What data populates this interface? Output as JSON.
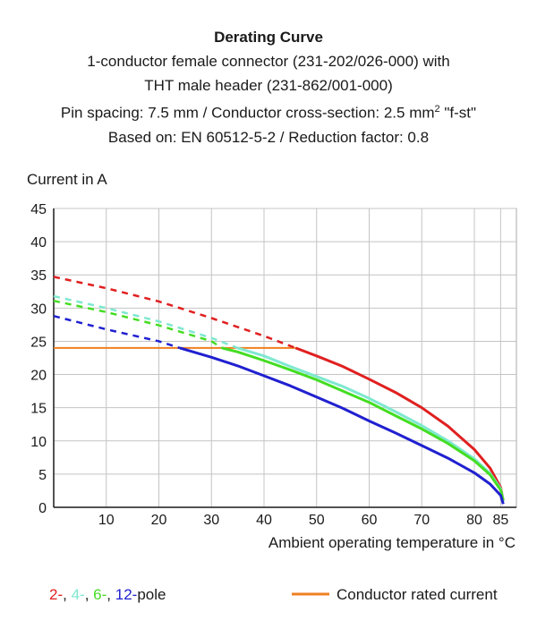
{
  "header": {
    "title": "Derating Curve",
    "line1": "1-conductor female connector (231-202/026-000) with",
    "line2": "THT male header (231-862/001-000)",
    "line3_a": "Pin spacing: 7.5 mm / Conductor cross-section: 2.5 mm",
    "line3_sup": "2",
    "line3_b": " \"f-st\"",
    "line4": "Based on: EN 60512-5-2 / Reduction factor: 0.8"
  },
  "legend": {
    "poles": [
      {
        "text": "2-",
        "color": "#e02020"
      },
      {
        "text": ", ",
        "color": "#1a1a1a"
      },
      {
        "text": "4-",
        "color": "#7fe8d0"
      },
      {
        "text": ", ",
        "color": "#1a1a1a"
      },
      {
        "text": "6-",
        "color": "#44dd22"
      },
      {
        "text": ", ",
        "color": "#1a1a1a"
      },
      {
        "text": "12-",
        "color": "#2020d0"
      },
      {
        "text": "pole",
        "color": "#1a1a1a"
      }
    ],
    "rated_label": "Conductor rated current",
    "rated_color": "#f08020"
  },
  "chart_data": {
    "type": "line",
    "ylabel": "Current in A",
    "xlabel": "Ambient operating temperature in °C",
    "xlim": [
      0,
      88
    ],
    "ylim": [
      0,
      45
    ],
    "xticks": [
      10,
      20,
      30,
      40,
      50,
      60,
      70,
      80,
      85
    ],
    "yticks": [
      0,
      5,
      10,
      15,
      20,
      25,
      30,
      35,
      40,
      45
    ],
    "grid": true,
    "series": [
      {
        "name": "2-pole",
        "color": "#e02020",
        "dashed": [
          [
            0,
            34.7
          ],
          [
            10,
            33.0
          ],
          [
            20,
            31.0
          ],
          [
            30,
            28.5
          ],
          [
            40,
            25.8
          ],
          [
            46,
            24.0
          ]
        ],
        "solid": [
          [
            46,
            24.0
          ],
          [
            50,
            22.8
          ],
          [
            55,
            21.2
          ],
          [
            60,
            19.3
          ],
          [
            65,
            17.3
          ],
          [
            70,
            15.0
          ],
          [
            75,
            12.2
          ],
          [
            80,
            8.7
          ],
          [
            83,
            5.9
          ],
          [
            85,
            3.0
          ],
          [
            85.5,
            1.0
          ]
        ]
      },
      {
        "name": "4-pole",
        "color": "#7fe8d0",
        "dashed": [
          [
            0,
            31.8
          ],
          [
            10,
            30.0
          ],
          [
            20,
            28.0
          ],
          [
            30,
            25.5
          ],
          [
            35,
            24.0
          ]
        ],
        "solid": [
          [
            35,
            24.0
          ],
          [
            40,
            22.8
          ],
          [
            45,
            21.2
          ],
          [
            50,
            19.7
          ],
          [
            55,
            18.2
          ],
          [
            60,
            16.4
          ],
          [
            65,
            14.4
          ],
          [
            70,
            12.3
          ],
          [
            75,
            10.0
          ],
          [
            80,
            7.3
          ],
          [
            83,
            5.1
          ],
          [
            85,
            2.8
          ],
          [
            85.5,
            1.0
          ]
        ]
      },
      {
        "name": "6-pole",
        "color": "#44dd22",
        "dashed": [
          [
            0,
            31.1
          ],
          [
            10,
            29.4
          ],
          [
            20,
            27.4
          ],
          [
            30,
            25.0
          ],
          [
            32,
            24.0
          ]
        ],
        "solid": [
          [
            32,
            24.0
          ],
          [
            35,
            23.4
          ],
          [
            40,
            22.1
          ],
          [
            45,
            20.7
          ],
          [
            50,
            19.2
          ],
          [
            55,
            17.5
          ],
          [
            60,
            15.8
          ],
          [
            65,
            13.8
          ],
          [
            70,
            11.8
          ],
          [
            75,
            9.6
          ],
          [
            80,
            7.0
          ],
          [
            83,
            4.9
          ],
          [
            85,
            2.6
          ],
          [
            85.5,
            1.0
          ]
        ]
      },
      {
        "name": "12-pole",
        "color": "#2020d0",
        "dashed": [
          [
            0,
            28.8
          ],
          [
            10,
            26.8
          ],
          [
            20,
            25.0
          ],
          [
            24,
            24.0
          ]
        ],
        "solid": [
          [
            24,
            24.0
          ],
          [
            30,
            22.6
          ],
          [
            35,
            21.3
          ],
          [
            40,
            19.8
          ],
          [
            45,
            18.3
          ],
          [
            50,
            16.6
          ],
          [
            55,
            14.9
          ],
          [
            60,
            13.0
          ],
          [
            65,
            11.2
          ],
          [
            70,
            9.3
          ],
          [
            75,
            7.4
          ],
          [
            80,
            5.2
          ],
          [
            83,
            3.5
          ],
          [
            85,
            1.8
          ],
          [
            85.5,
            0.5
          ]
        ]
      }
    ],
    "rated_current": {
      "name": "Conductor rated current",
      "color": "#f08020",
      "points": [
        [
          0,
          24.0
        ],
        [
          46,
          24.0
        ]
      ]
    }
  }
}
